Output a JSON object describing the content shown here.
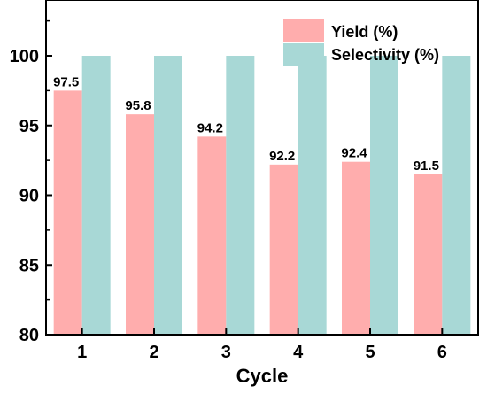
{
  "chart_data": {
    "type": "bar",
    "xlabel": "Cycle",
    "ylabel": "",
    "categories": [
      "1",
      "2",
      "3",
      "4",
      "5",
      "6"
    ],
    "ylim": [
      80,
      104
    ],
    "yticks": [
      80,
      85,
      90,
      95,
      100
    ],
    "legend_position": "top-right",
    "series": [
      {
        "name": "Yield (%)",
        "color": "#ffadad",
        "values": [
          97.5,
          95.8,
          94.2,
          92.2,
          92.4,
          91.5
        ],
        "labels": [
          "97.5",
          "95.8",
          "94.2",
          "92.2",
          "92.4",
          "91.5"
        ]
      },
      {
        "name": "Selectivity (%)",
        "color": "#a8d8d6",
        "values": [
          100,
          100,
          100,
          100,
          100,
          100
        ]
      }
    ]
  }
}
